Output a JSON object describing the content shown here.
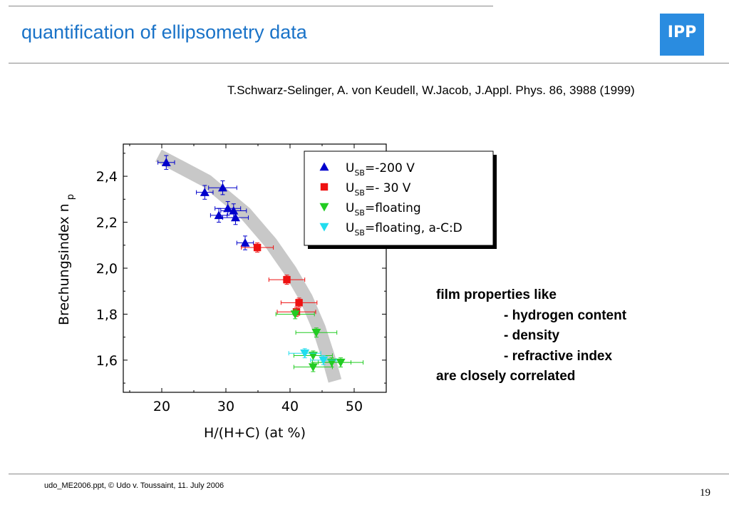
{
  "slide": {
    "title": "quantification of ellipsometry data",
    "citation": "T.Schwarz-Selinger, A. von Keudell, W.Jacob, J.Appl. Phys. 86, 3988 (1999)",
    "notes": [
      "film properties like",
      "- hydrogen content",
      "- density",
      "- refractive index",
      "are closely correlated"
    ],
    "footer": "udo_ME2006.ppt, © Udo v. Toussaint, 11. July 2006",
    "page_number": "19",
    "logo_text": "IPP",
    "colors": {
      "title": "#1a73c8",
      "logo": "#2a8ce0"
    }
  },
  "chart_data": {
    "type": "scatter",
    "xlabel": "H/(H+C) (at %)",
    "ylabel_main": "Brechungsindex n",
    "ylabel_sub": "p",
    "xlim": [
      14,
      55
    ],
    "ylim": [
      1.46,
      2.54
    ],
    "xticks": [
      20,
      30,
      40,
      50
    ],
    "xtick_labels": [
      "20",
      "30",
      "40",
      "50"
    ],
    "yticks": [
      1.6,
      1.8,
      2.0,
      2.2,
      2.4
    ],
    "ytick_labels": [
      "1,6",
      "1,8",
      "2,0",
      "2,2",
      "2,4"
    ],
    "legend_position": "top-right",
    "trend_band": [
      [
        19.5,
        2.49
      ],
      [
        27,
        2.38
      ],
      [
        33,
        2.24
      ],
      [
        37,
        2.11
      ],
      [
        40,
        1.99
      ],
      [
        42.5,
        1.87
      ],
      [
        44.5,
        1.74
      ],
      [
        46,
        1.61
      ],
      [
        47,
        1.51
      ]
    ],
    "series": [
      {
        "name_main": "U",
        "name_sub": "SB",
        "name_rest": "=-200 V",
        "marker": "triangle-up",
        "color": "#0000cc",
        "points": [
          {
            "x": 20.7,
            "y": 2.46,
            "xerr": 1.3,
            "yerr": 0.03
          },
          {
            "x": 26.7,
            "y": 2.33,
            "xerr": 1.3,
            "yerr": 0.03
          },
          {
            "x": 29.5,
            "y": 2.35,
            "xerr": 2.2,
            "yerr": 0.03
          },
          {
            "x": 30.3,
            "y": 2.26,
            "xerr": 2.0,
            "yerr": 0.03
          },
          {
            "x": 31.2,
            "y": 2.25,
            "xerr": 2.0,
            "yerr": 0.03
          },
          {
            "x": 28.9,
            "y": 2.23,
            "xerr": 1.3,
            "yerr": 0.03
          },
          {
            "x": 31.5,
            "y": 2.22,
            "xerr": 2.0,
            "yerr": 0.03
          },
          {
            "x": 33.0,
            "y": 2.11,
            "xerr": 1.3,
            "yerr": 0.03
          }
        ]
      },
      {
        "name_main": "U",
        "name_sub": "SB",
        "name_rest": "=- 30 V",
        "marker": "square",
        "color": "#ee1111",
        "points": [
          {
            "x": 34.9,
            "y": 2.09,
            "xerr": 2.5,
            "yerr": 0.02
          },
          {
            "x": 39.5,
            "y": 1.95,
            "xerr": 2.8,
            "yerr": 0.02
          },
          {
            "x": 41.4,
            "y": 1.85,
            "xerr": 2.8,
            "yerr": 0.02
          },
          {
            "x": 41.0,
            "y": 1.81,
            "xerr": 3.0,
            "yerr": 0.02
          }
        ]
      },
      {
        "name_main": "U",
        "name_sub": "SB",
        "name_rest": "=floating",
        "marker": "triangle-down",
        "color": "#22cc22",
        "points": [
          {
            "x": 40.8,
            "y": 1.8,
            "xerr": 3.0,
            "yerr": 0.02
          },
          {
            "x": 44.1,
            "y": 1.72,
            "xerr": 3.2,
            "yerr": 0.02
          },
          {
            "x": 43.6,
            "y": 1.62,
            "xerr": 3.0,
            "yerr": 0.02
          },
          {
            "x": 43.6,
            "y": 1.57,
            "xerr": 3.0,
            "yerr": 0.02
          },
          {
            "x": 46.5,
            "y": 1.59,
            "xerr": 3.0,
            "yerr": 0.02
          },
          {
            "x": 47.9,
            "y": 1.59,
            "xerr": 3.5,
            "yerr": 0.02
          }
        ]
      },
      {
        "name_main": "U",
        "name_sub": "SB",
        "name_rest": "=floating, a-C:D",
        "marker": "triangle-down",
        "color": "#22ddee",
        "points": [
          {
            "x": 42.3,
            "y": 1.63,
            "xerr": 2.5,
            "yerr": 0.02
          },
          {
            "x": 45.2,
            "y": 1.6,
            "xerr": 2.0,
            "yerr": 0.02
          }
        ]
      }
    ]
  }
}
